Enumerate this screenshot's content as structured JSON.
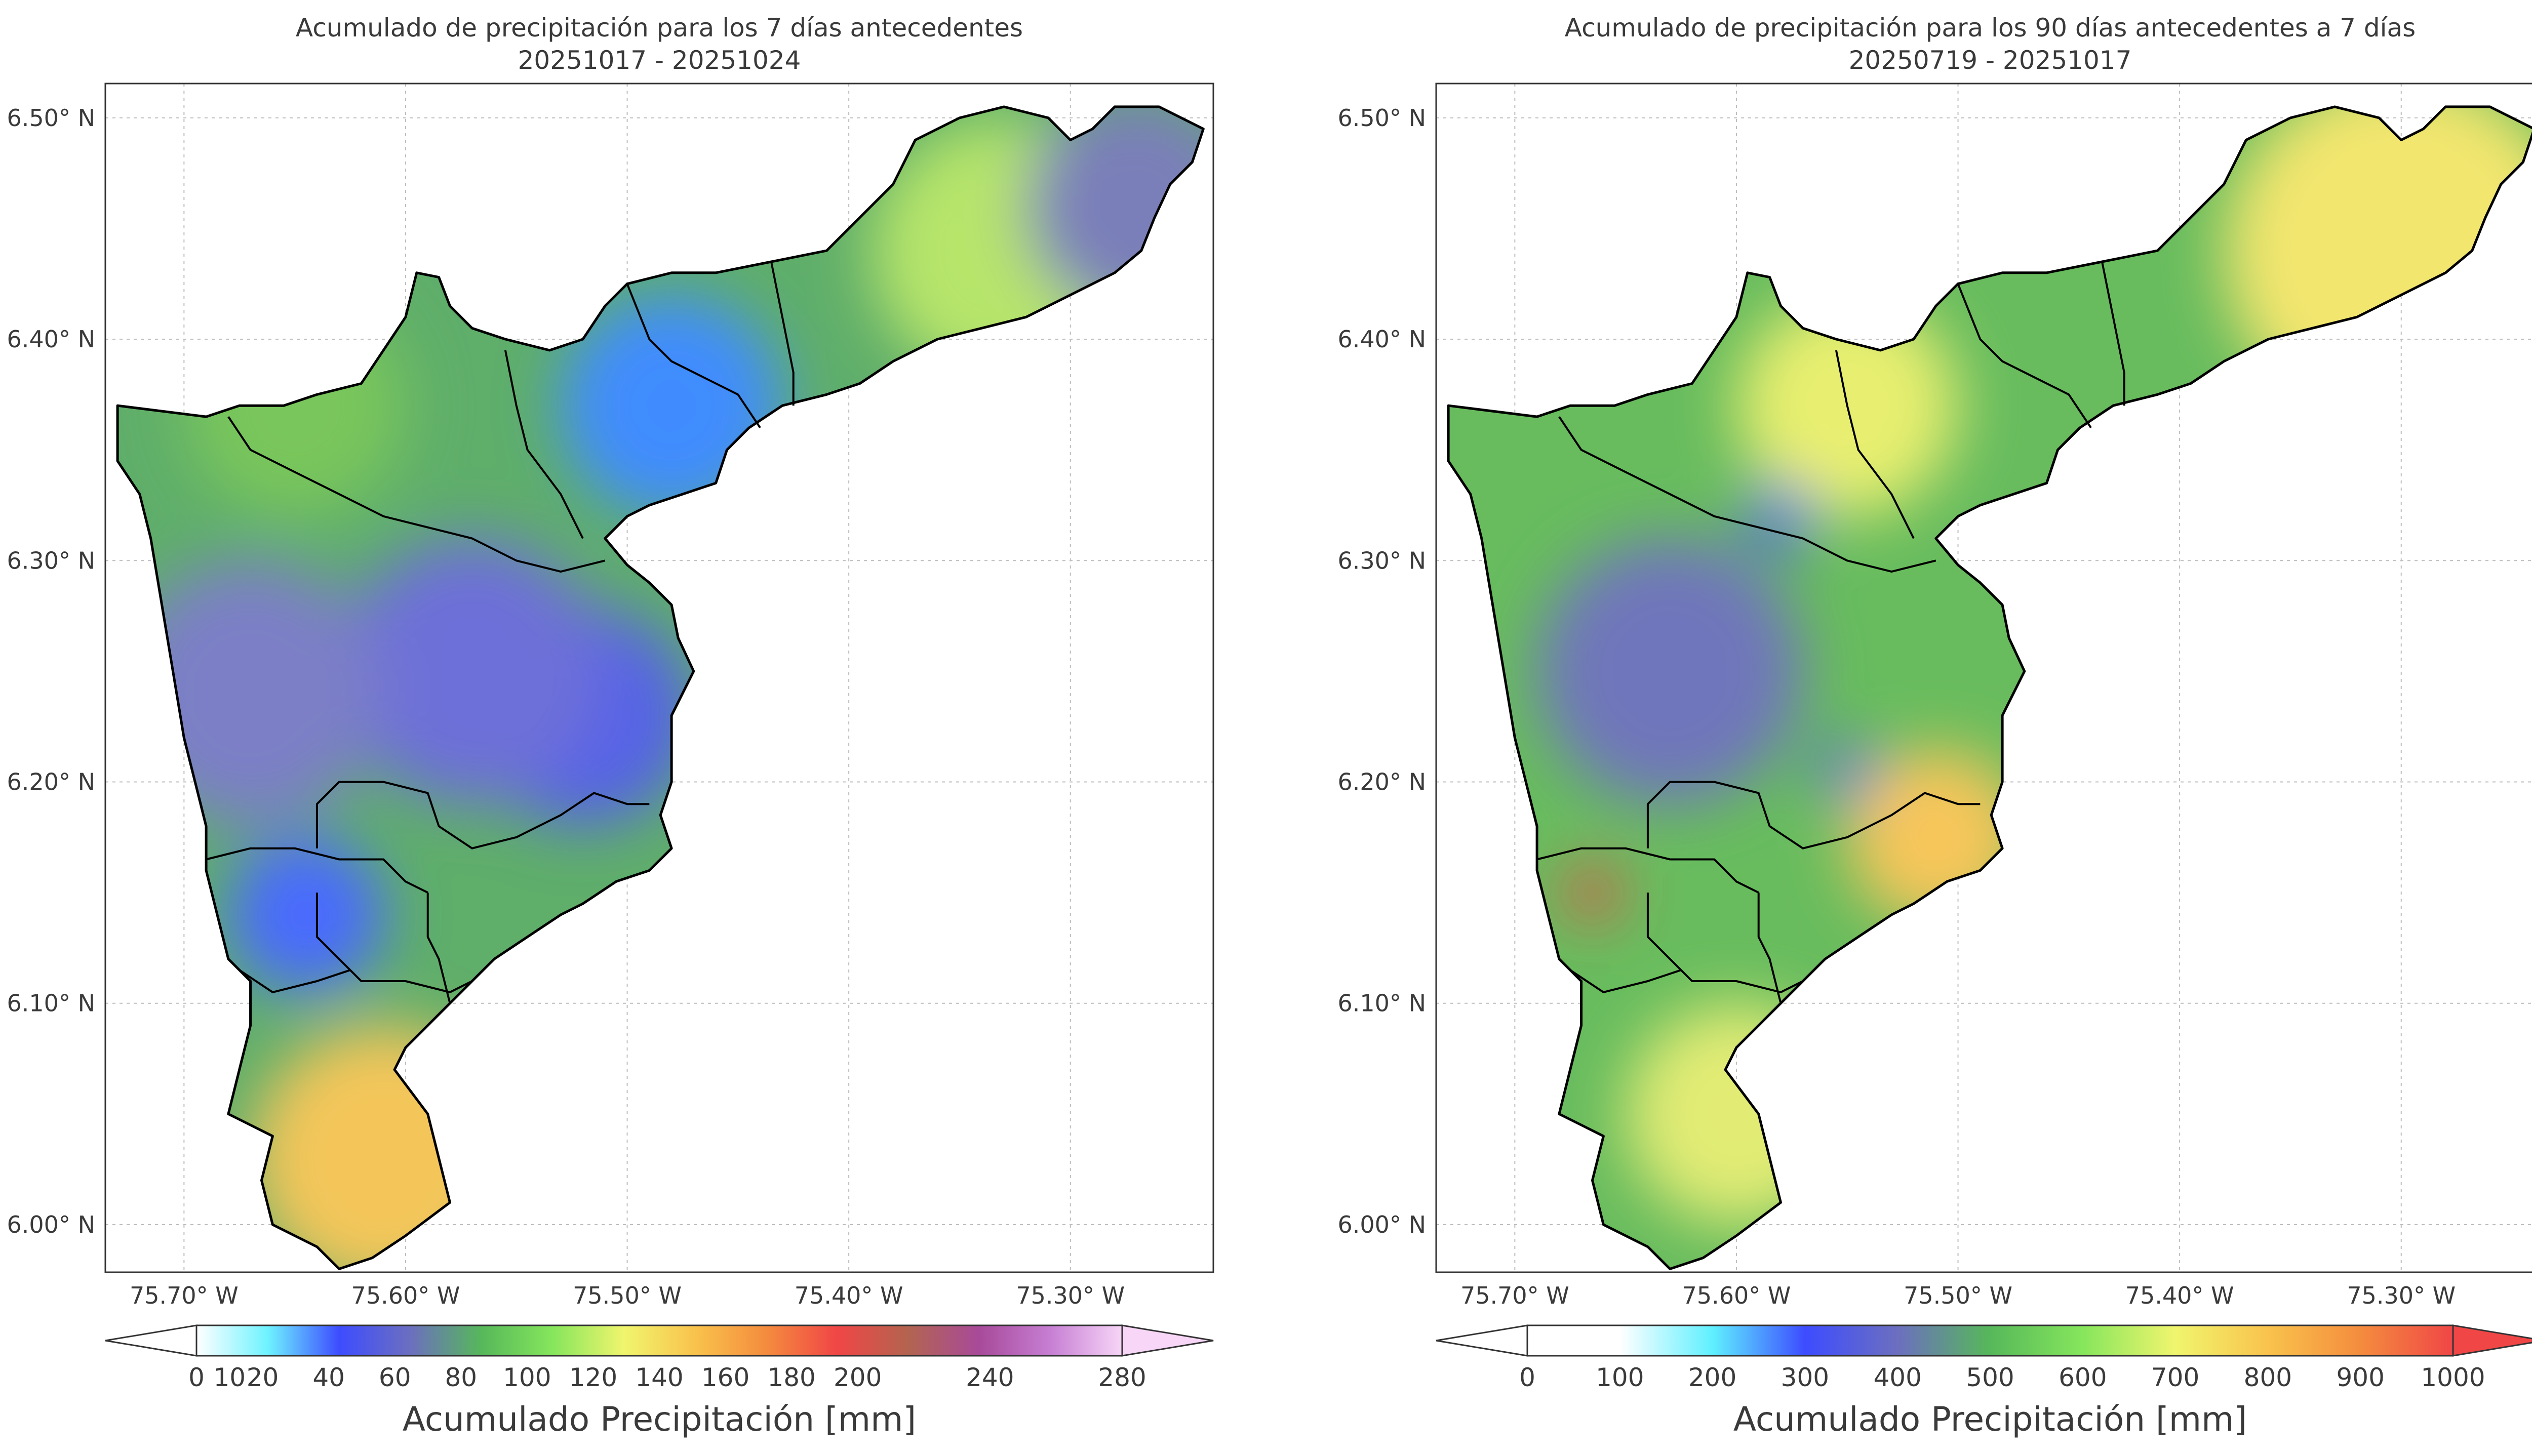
{
  "panels": [
    {
      "title_line1": "Acumulado de precipitación para los 7 días antecedentes",
      "title_line2": "20251017 - 20251024",
      "x_ticks": [
        "75.70° W",
        "75.60° W",
        "75.50° W",
        "75.40° W",
        "75.30° W"
      ],
      "y_ticks": [
        "6.50° N",
        "6.40° N",
        "6.30° N",
        "6.20° N",
        "6.10° N",
        "6.00° N"
      ],
      "colorbar": {
        "label": "Acumulado Precipitación [mm]",
        "ticks": [
          "0",
          "10",
          "20",
          "40",
          "60",
          "80",
          "100",
          "120",
          "140",
          "160",
          "180",
          "200",
          "240",
          "280"
        ],
        "tick_values": [
          0,
          10,
          20,
          40,
          60,
          80,
          100,
          120,
          140,
          160,
          180,
          200,
          240,
          280
        ],
        "min": 0,
        "max": 280,
        "colors": [
          "#ffffff",
          "#6ef3ff",
          "#3d4cff",
          "#6c6fbf",
          "#56b85a",
          "#86e65c",
          "#f0f56e",
          "#f9c34c",
          "#f48c3e",
          "#f04646",
          "#b36450",
          "#a84a9a",
          "#c77fd4",
          "#f7d6f7"
        ],
        "extend": "both"
      },
      "field": {
        "base": "#5fae6a",
        "blobs": [
          {
            "lon": -75.645,
            "lat": 6.14,
            "r": 0.035,
            "c": "#4a6bff"
          },
          {
            "lon": -75.48,
            "lat": 6.37,
            "r": 0.05,
            "c": "#3f8cff"
          },
          {
            "lon": -75.52,
            "lat": 6.23,
            "r": 0.05,
            "c": "#5562e8"
          },
          {
            "lon": -75.61,
            "lat": 6.03,
            "r": 0.06,
            "c": "#f4c65a"
          },
          {
            "lon": -75.33,
            "lat": 6.44,
            "r": 0.06,
            "c": "#b7e56a"
          },
          {
            "lon": -75.27,
            "lat": 6.46,
            "r": 0.05,
            "c": "#7a7fb9"
          },
          {
            "lon": -75.57,
            "lat": 6.25,
            "r": 0.06,
            "c": "#6d70d8"
          },
          {
            "lon": -75.67,
            "lat": 6.24,
            "r": 0.06,
            "c": "#7b7fc6"
          },
          {
            "lon": -75.65,
            "lat": 6.37,
            "r": 0.05,
            "c": "#79c65c"
          }
        ]
      }
    },
    {
      "title_line1": "Acumulado de precipitación para los 90 días antecedentes a 7 días",
      "title_line2": "20250719 - 20251017",
      "x_ticks": [
        "75.70° W",
        "75.60° W",
        "75.50° W",
        "75.40° W",
        "75.30° W"
      ],
      "y_ticks": [
        "6.50° N",
        "6.40° N",
        "6.30° N",
        "6.20° N",
        "6.10° N",
        "6.00° N"
      ],
      "colorbar": {
        "label": "Acumulado Precipitación [mm]",
        "ticks": [
          "0",
          "100",
          "200",
          "300",
          "400",
          "500",
          "600",
          "700",
          "800",
          "900",
          "1000"
        ],
        "tick_values": [
          0,
          100,
          200,
          300,
          400,
          500,
          600,
          700,
          800,
          900,
          1000
        ],
        "min": 0,
        "max": 1000,
        "colors": [
          "#ffffff",
          "#ffffff",
          "#5ff0ff",
          "#3d4cff",
          "#6c6fbf",
          "#56b85a",
          "#86e65c",
          "#f0f56e",
          "#f9c34c",
          "#f48c3e",
          "#f04646"
        ],
        "extend": "both"
      },
      "field": {
        "base": "#68bc5e",
        "blobs": [
          {
            "lon": -75.3,
            "lat": 6.44,
            "r": 0.08,
            "c": "#f3e66e"
          },
          {
            "lon": -75.51,
            "lat": 6.175,
            "r": 0.04,
            "c": "#f7c65a"
          },
          {
            "lon": -75.665,
            "lat": 6.15,
            "r": 0.012,
            "c": "#f04646"
          },
          {
            "lon": -75.63,
            "lat": 6.25,
            "r": 0.06,
            "c": "#6f76bb"
          },
          {
            "lon": -75.6,
            "lat": 6.05,
            "r": 0.05,
            "c": "#e2ec74"
          },
          {
            "lon": -75.55,
            "lat": 6.37,
            "r": 0.05,
            "c": "#e8ef70"
          },
          {
            "lon": -75.58,
            "lat": 6.32,
            "r": 0.015,
            "c": "#4a5cf0"
          },
          {
            "lon": -75.55,
            "lat": 6.205,
            "r": 0.012,
            "c": "#4a5cf0"
          }
        ]
      }
    }
  ]
}
